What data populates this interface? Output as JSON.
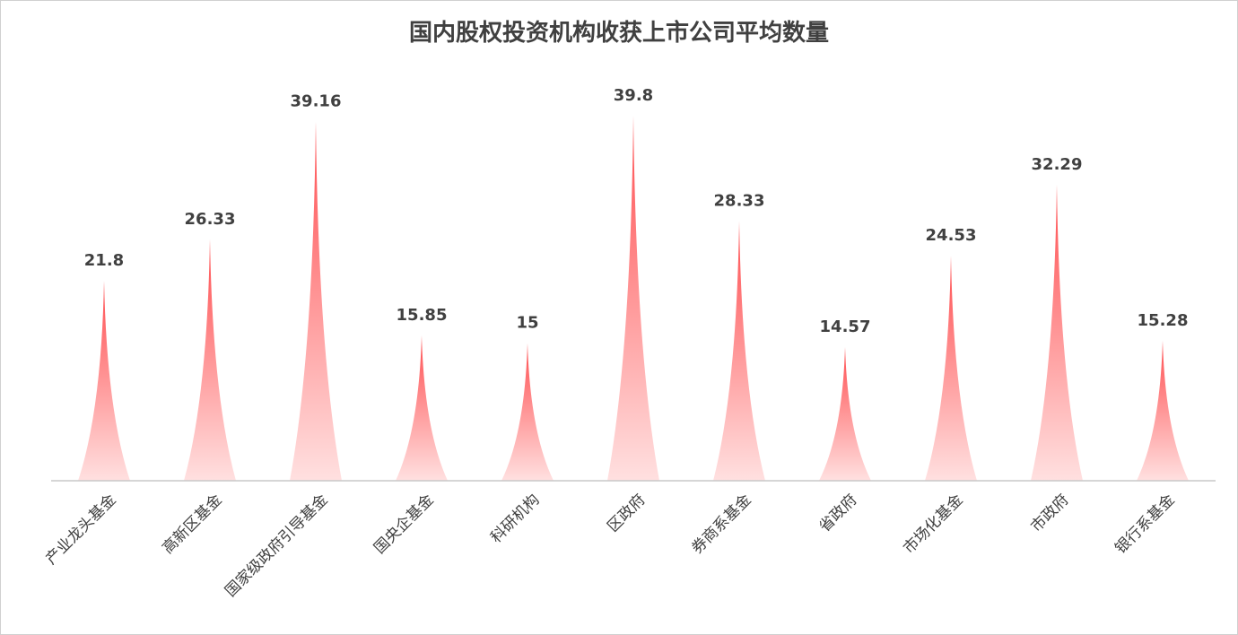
{
  "chart_data": {
    "type": "bar",
    "title": "国内股权投资机构收获上市公司平均数量",
    "categories": [
      "产业龙头基金",
      "高新区基金",
      "国家级政府引导基金",
      "国央企基金",
      "科研机构",
      "区政府",
      "券商系基金",
      "省政府",
      "市场化基金",
      "市政府",
      "银行系基金"
    ],
    "values": [
      21.8,
      26.33,
      39.16,
      15.85,
      15,
      39.8,
      28.33,
      14.57,
      24.53,
      32.29,
      15.28
    ],
    "data_labels": [
      "21.8",
      "26.33",
      "39.16",
      "15.85",
      "15",
      "39.8",
      "28.33",
      "14.57",
      "24.53",
      "32.29",
      "15.28"
    ],
    "xlabel": "",
    "ylabel": "",
    "ylim": [
      0,
      40
    ],
    "grid": false,
    "legend": "none",
    "colors": {
      "peak": "#ff4d4f",
      "base": "#ffe0e0",
      "axis": "#c8c8c8",
      "text": "#404040"
    }
  }
}
